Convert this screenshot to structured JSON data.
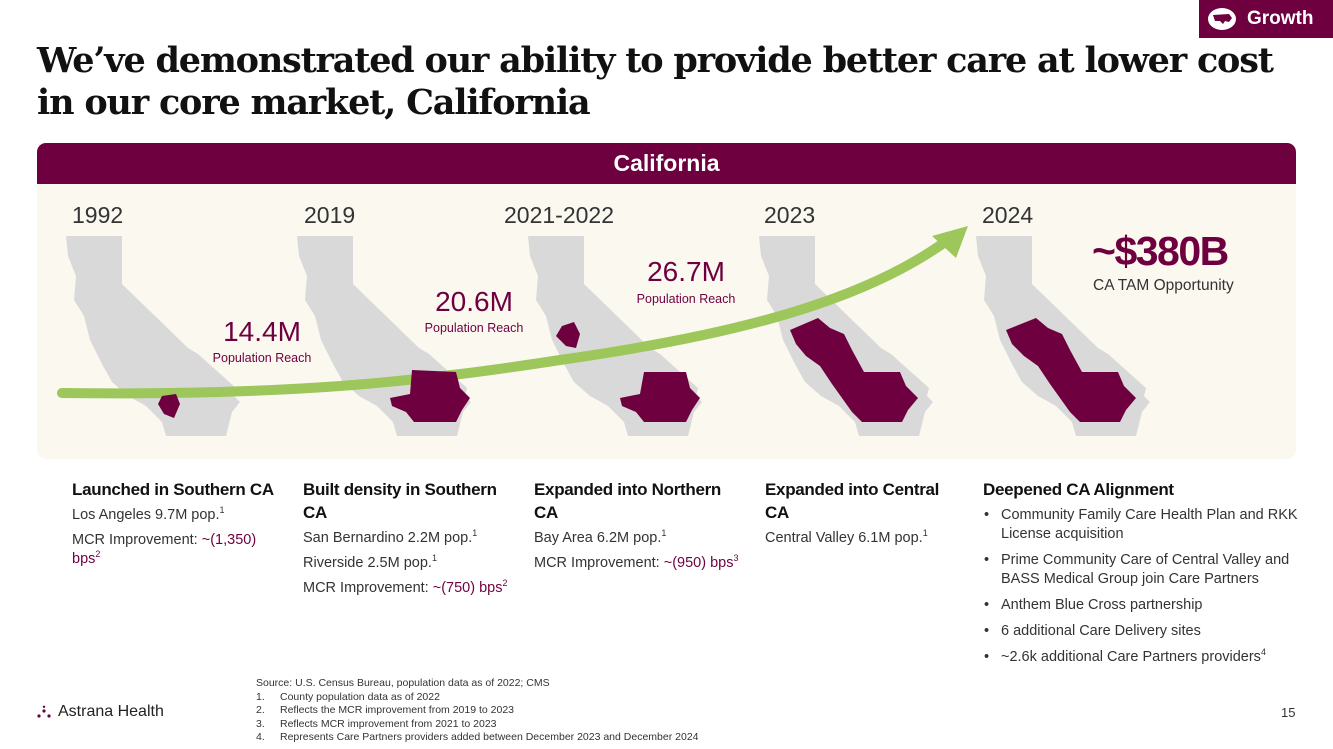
{
  "badge": {
    "label": "Growth",
    "icon": "us-map-icon",
    "color": "#6e0040"
  },
  "title": "We’ve demonstrated our ability to provide better care at lower cost in our core market, California",
  "panel": {
    "header": "California"
  },
  "stages": [
    {
      "year": "1992",
      "reach": null
    },
    {
      "year": "2019",
      "reach": {
        "value": "14.4M",
        "label": "Population Reach"
      }
    },
    {
      "year": "2021-2022",
      "reach": {
        "value": "20.6M",
        "label": "Population Reach"
      }
    },
    {
      "year": "2023",
      "reach": {
        "value": "26.7M",
        "label": "Population Reach"
      }
    },
    {
      "year": "2024",
      "reach": null
    }
  ],
  "tam": {
    "value": "~$380B",
    "label": "CA TAM Opportunity"
  },
  "columns": [
    {
      "heading": "Launched in Southern CA",
      "lines": [
        {
          "text": "Los Angeles 9.7M pop.",
          "sup": "1"
        },
        {
          "prefix": "MCR Improvement: ",
          "value": "~(1,350) bps",
          "sup": "2"
        }
      ]
    },
    {
      "heading": "Built density in Southern CA",
      "lines": [
        {
          "text": "San Bernardino 2.2M pop.",
          "sup": "1"
        },
        {
          "text": "Riverside 2.5M pop.",
          "sup": "1"
        },
        {
          "prefix": "MCR Improvement: ",
          "value": "~(750) bps",
          "sup": "2"
        }
      ]
    },
    {
      "heading": "Expanded into Northern CA",
      "lines": [
        {
          "text": "Bay Area 6.2M pop.",
          "sup": "1"
        },
        {
          "prefix": "MCR Improvement: ",
          "value": "~(950) bps",
          "sup": "3"
        }
      ]
    },
    {
      "heading": "Expanded into Central CA",
      "lines": [
        {
          "text": "Central Valley 6.1M pop.",
          "sup": "1"
        }
      ]
    },
    {
      "heading": "Deepened CA Alignment",
      "bullets": [
        {
          "text": "Community Family Care Health Plan and RKK License acquisition"
        },
        {
          "text": "Prime Community Care of Central Valley and BASS Medical Group join Care Partners"
        },
        {
          "text": "Anthem Blue Cross partnership"
        },
        {
          "text": "6 additional Care Delivery sites"
        },
        {
          "text": "~2.6k additional Care Partners providers",
          "sup": "4"
        }
      ]
    }
  ],
  "footer": {
    "logo": "Astrana Health",
    "source": "Source: U.S. Census Bureau, population data as of 2022; CMS",
    "footnotes": [
      {
        "n": "1.",
        "text": "County population data as of 2022"
      },
      {
        "n": "2.",
        "text": "Reflects the MCR improvement from 2019 to 2023"
      },
      {
        "n": "3.",
        "text": "Reflects MCR improvement from 2021 to 2023"
      },
      {
        "n": "4.",
        "text": "Represents Care Partners providers added between December 2023 and December 2024"
      }
    ],
    "page": "15"
  },
  "colors": {
    "accent": "#6e0040",
    "trend": "#9dc75a",
    "map": "#d9d9d9",
    "panel": "#fbf8ef"
  }
}
